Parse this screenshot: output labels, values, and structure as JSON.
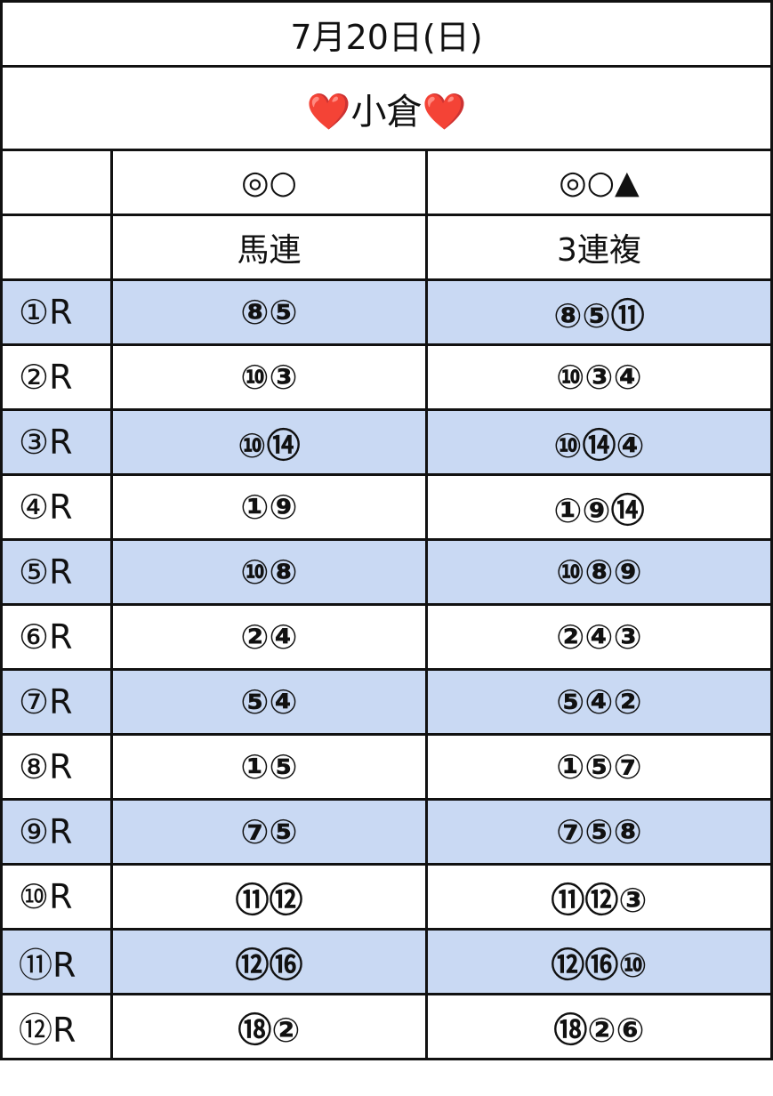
{
  "header": {
    "title": "7月20日(日)",
    "venue": "❤️小倉❤️"
  },
  "table": {
    "marks": [
      "◎○",
      "◎○▲"
    ],
    "bet_types": [
      "馬連",
      "3連複"
    ],
    "rows": [
      [
        "①R",
        "⑧⑤",
        "⑧⑤⑪"
      ],
      [
        "②R",
        "⑩③",
        "⑩③④"
      ],
      [
        "③R",
        "⑩⑭",
        "⑩⑭④"
      ],
      [
        "④R",
        "①⑨",
        "①⑨⑭"
      ],
      [
        "⑤R",
        "⑩⑧",
        "⑩⑧⑨"
      ],
      [
        "⑥R",
        "②④",
        "②④③"
      ],
      [
        "⑦R",
        "⑤④",
        "⑤④②"
      ],
      [
        "⑧R",
        "①⑤",
        "①⑤⑦"
      ],
      [
        "⑨R",
        "⑦⑤",
        "⑦⑤⑧"
      ],
      [
        "⑩R",
        "⑪⑫",
        "⑪⑫③"
      ],
      [
        "⑪R",
        "⑫⑯",
        "⑫⑯⑩"
      ],
      [
        "⑫R",
        "⑱②",
        "⑱②⑥"
      ]
    ]
  }
}
